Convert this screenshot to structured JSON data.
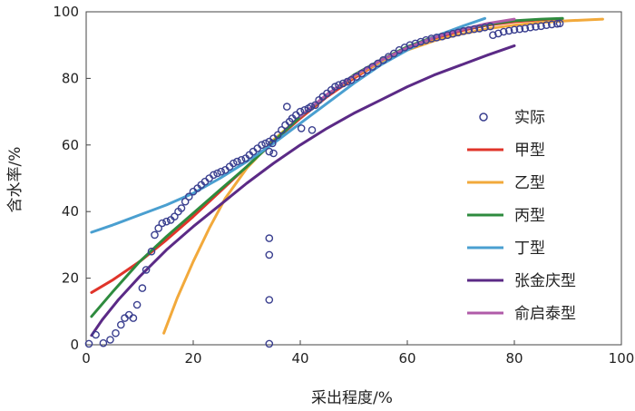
{
  "chart_data": {
    "type": "line",
    "title": "",
    "xlabel": "采出程度/%",
    "ylabel": "含水率/%",
    "xlim": [
      0,
      100
    ],
    "ylim": [
      0,
      100
    ],
    "xticks": [
      "0",
      "20",
      "40",
      "60",
      "80",
      "100"
    ],
    "yticks": [
      "0",
      "20",
      "40",
      "60",
      "80",
      "100"
    ],
    "grid": false,
    "legend_position": "right",
    "series": [
      {
        "name": "实际",
        "type": "scatter",
        "color": "#3a3f8f",
        "points": [
          [
            0.5,
            0.3
          ],
          [
            1.8,
            3
          ],
          [
            3.2,
            0.5
          ],
          [
            4.5,
            1.5
          ],
          [
            5.5,
            3.5
          ],
          [
            6.5,
            6
          ],
          [
            7.2,
            8
          ],
          [
            8,
            9
          ],
          [
            8.8,
            8
          ],
          [
            9.5,
            12
          ],
          [
            10.5,
            17
          ],
          [
            11.2,
            22.5
          ],
          [
            12.2,
            28
          ],
          [
            12.8,
            33
          ],
          [
            13.5,
            35
          ],
          [
            14.2,
            36.5
          ],
          [
            15,
            37
          ],
          [
            15.8,
            37.5
          ],
          [
            16.5,
            38.5
          ],
          [
            17.2,
            40
          ],
          [
            17.8,
            41
          ],
          [
            18.5,
            43
          ],
          [
            19.2,
            44.5
          ],
          [
            20,
            46
          ],
          [
            20.8,
            47
          ],
          [
            21.5,
            48
          ],
          [
            22.2,
            49
          ],
          [
            23,
            50
          ],
          [
            23.8,
            51
          ],
          [
            24.5,
            51.5
          ],
          [
            25.2,
            52
          ],
          [
            26,
            52.5
          ],
          [
            26.8,
            53.5
          ],
          [
            27.5,
            54.5
          ],
          [
            28.2,
            55
          ],
          [
            29,
            55.5
          ],
          [
            29.8,
            56
          ],
          [
            30.5,
            57
          ],
          [
            31.2,
            58
          ],
          [
            32,
            59
          ],
          [
            32.8,
            60
          ],
          [
            33.5,
            60.5
          ],
          [
            34.2,
            61
          ],
          [
            35,
            62
          ],
          [
            35.8,
            63
          ],
          [
            36.5,
            64.5
          ],
          [
            37.2,
            66
          ],
          [
            38,
            67
          ],
          [
            38.5,
            68
          ],
          [
            39.2,
            69
          ],
          [
            40,
            70
          ],
          [
            40.8,
            70.5
          ],
          [
            41.5,
            71
          ],
          [
            42,
            71.5
          ],
          [
            42.8,
            72
          ],
          [
            43.5,
            73.5
          ],
          [
            44.2,
            74.5
          ],
          [
            45,
            75.5
          ],
          [
            45.8,
            76.5
          ],
          [
            46.5,
            77.5
          ],
          [
            47.2,
            78
          ],
          [
            48,
            78.5
          ],
          [
            48.8,
            79
          ],
          [
            49.5,
            79.5
          ],
          [
            50.5,
            80.5
          ],
          [
            51.5,
            81.5
          ],
          [
            52.5,
            82.5
          ],
          [
            53.5,
            83.5
          ],
          [
            54.5,
            84.5
          ],
          [
            55.5,
            85.5
          ],
          [
            56.5,
            86.5
          ],
          [
            57.5,
            87.5
          ],
          [
            58.5,
            88.5
          ],
          [
            59.5,
            89.3
          ],
          [
            60.5,
            90
          ],
          [
            61.5,
            90.5
          ],
          [
            62.5,
            91
          ],
          [
            63.5,
            91.5
          ],
          [
            64.5,
            92
          ],
          [
            65.5,
            92.3
          ],
          [
            66.5,
            92.6
          ],
          [
            67.5,
            93
          ],
          [
            68.5,
            93.4
          ],
          [
            69.5,
            93.8
          ],
          [
            70.5,
            94.2
          ],
          [
            71.5,
            94.5
          ],
          [
            72.5,
            94.8
          ],
          [
            73.5,
            95
          ],
          [
            74.5,
            95.3
          ],
          [
            75.5,
            95.6
          ],
          [
            76,
            93
          ],
          [
            77,
            93.5
          ],
          [
            78,
            94
          ],
          [
            79,
            94.3
          ],
          [
            80,
            94.6
          ],
          [
            81,
            94.8
          ],
          [
            82,
            95
          ],
          [
            83,
            95.3
          ],
          [
            84,
            95.5
          ],
          [
            85,
            95.7
          ],
          [
            86,
            96
          ],
          [
            87,
            96.2
          ],
          [
            88,
            96.4
          ],
          [
            88.5,
            96.5
          ],
          [
            37.5,
            71.5
          ],
          [
            40.2,
            65
          ],
          [
            42.2,
            64.5
          ],
          [
            34.2,
            58
          ],
          [
            35,
            57.5
          ],
          [
            34.8,
            60.5
          ],
          [
            34.2,
            32
          ],
          [
            34.2,
            27
          ],
          [
            34.2,
            13.5
          ],
          [
            34.2,
            0.3
          ]
        ]
      },
      {
        "name": "甲型",
        "type": "line",
        "color": "#e0342a",
        "points": [
          [
            1,
            15.7
          ],
          [
            5,
            19.5
          ],
          [
            10,
            25
          ],
          [
            15,
            31.5
          ],
          [
            20,
            38.5
          ],
          [
            25,
            46
          ],
          [
            30,
            53.5
          ],
          [
            35,
            61
          ],
          [
            40,
            68
          ],
          [
            45,
            74.5
          ],
          [
            50,
            80
          ],
          [
            55,
            85
          ],
          [
            60,
            89
          ],
          [
            65,
            92
          ],
          [
            70,
            94.3
          ],
          [
            75,
            96
          ],
          [
            80,
            97
          ],
          [
            85,
            97.6
          ],
          [
            89,
            97.9
          ]
        ]
      },
      {
        "name": "乙型",
        "type": "line",
        "color": "#f2a93b",
        "points": [
          [
            14.5,
            3.5
          ],
          [
            17,
            14
          ],
          [
            20,
            25
          ],
          [
            23,
            35
          ],
          [
            26,
            44
          ],
          [
            30,
            53
          ],
          [
            35,
            61.5
          ],
          [
            40,
            68.5
          ],
          [
            45,
            75
          ],
          [
            50,
            80.5
          ],
          [
            55,
            85
          ],
          [
            60,
            88.5
          ],
          [
            65,
            91.3
          ],
          [
            70,
            93.3
          ],
          [
            75,
            94.9
          ],
          [
            80,
            96
          ],
          [
            85,
            96.8
          ],
          [
            90,
            97.3
          ],
          [
            96.5,
            97.8
          ]
        ]
      },
      {
        "name": "丙型",
        "type": "line",
        "color": "#2e8b3e",
        "points": [
          [
            1,
            8.5
          ],
          [
            5,
            16
          ],
          [
            10,
            25
          ],
          [
            15,
            32.5
          ],
          [
            20,
            39.5
          ],
          [
            25,
            46.5
          ],
          [
            30,
            53.5
          ],
          [
            35,
            61
          ],
          [
            40,
            68.5
          ],
          [
            45,
            75
          ],
          [
            50,
            81
          ],
          [
            55,
            85.5
          ],
          [
            60,
            89.5
          ],
          [
            65,
            92.5
          ],
          [
            70,
            94.7
          ],
          [
            75,
            96.2
          ],
          [
            80,
            97.3
          ],
          [
            85,
            97.8
          ],
          [
            89,
            98
          ]
        ]
      },
      {
        "name": "丁型",
        "type": "line",
        "color": "#4a9fd0",
        "points": [
          [
            1,
            33.8
          ],
          [
            5,
            36
          ],
          [
            10,
            39
          ],
          [
            15,
            42
          ],
          [
            20,
            45.5
          ],
          [
            25,
            50
          ],
          [
            30,
            55
          ],
          [
            35,
            60.5
          ],
          [
            40,
            66.5
          ],
          [
            45,
            72.5
          ],
          [
            50,
            78.5
          ],
          [
            55,
            84
          ],
          [
            60,
            88.5
          ],
          [
            65,
            92.5
          ],
          [
            70,
            95.5
          ],
          [
            74.5,
            98
          ]
        ]
      },
      {
        "name": "张金庆型",
        "type": "line",
        "color": "#5b2a86",
        "points": [
          [
            1,
            2.8
          ],
          [
            3,
            7.5
          ],
          [
            6,
            13.5
          ],
          [
            10,
            20.5
          ],
          [
            15,
            28.5
          ],
          [
            20,
            35.5
          ],
          [
            25,
            42
          ],
          [
            30,
            48.5
          ],
          [
            35,
            54.5
          ],
          [
            40,
            60
          ],
          [
            45,
            65
          ],
          [
            50,
            69.5
          ],
          [
            55,
            73.5
          ],
          [
            60,
            77.5
          ],
          [
            65,
            81
          ],
          [
            70,
            84
          ],
          [
            75,
            87
          ],
          [
            80,
            89.8
          ]
        ]
      },
      {
        "name": "俞启泰型",
        "type": "line",
        "color": "#b05ba8",
        "points": [
          [
            40,
            68.6
          ],
          [
            45,
            75.2
          ],
          [
            50,
            80.8
          ],
          [
            55,
            85.4
          ],
          [
            60,
            89.2
          ],
          [
            65,
            92.3
          ],
          [
            70,
            94.6
          ],
          [
            75,
            96.5
          ],
          [
            80,
            97.8
          ]
        ]
      }
    ]
  }
}
